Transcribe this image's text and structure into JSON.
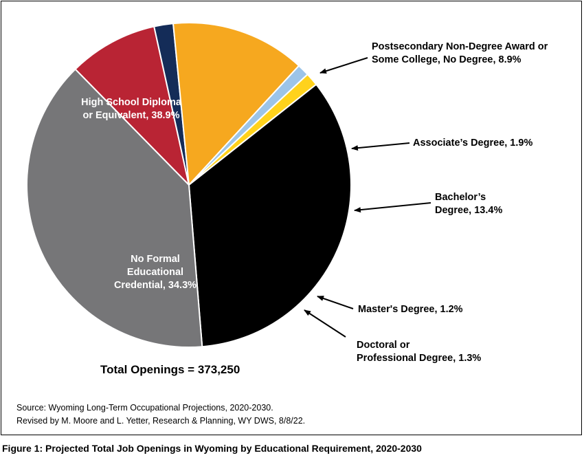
{
  "chart_data": {
    "type": "pie",
    "title": "",
    "total_label": "Total Openings = 373,250",
    "slices": [
      {
        "label": "Postsecondary Non-Degree Award or\nSome College, No Degree, 8.9%",
        "value": 8.9,
        "color": "#b92434",
        "label_pos": "outside"
      },
      {
        "label": "Associate’s Degree, 1.9%",
        "value": 1.9,
        "color": "#142c58",
        "label_pos": "outside"
      },
      {
        "label": "Bachelor’s\nDegree, 13.4%",
        "value": 13.4,
        "color": "#f6a81f",
        "label_pos": "outside"
      },
      {
        "label": "Master's Degree, 1.2%",
        "value": 1.2,
        "color": "#9cc4e8",
        "label_pos": "outside"
      },
      {
        "label": "Doctoral or\nProfessional Degree, 1.3%",
        "value": 1.3,
        "color": "#ffd21c",
        "label_pos": "outside"
      },
      {
        "label": "No Formal\nEducational\nCredential, 34.3%",
        "value": 34.3,
        "color": "#000000",
        "label_pos": "inside"
      },
      {
        "label": "High School Diploma\nor Equivalent, 38.9%",
        "value": 38.9,
        "color": "#767678",
        "label_pos": "inside"
      }
    ]
  },
  "source_lines": [
    "Source: Wyoming Long-Term Occupational Projections, 2020-2030.",
    "Revised by M. Moore and L. Yetter, Research & Planning, WY DWS, 8/8/22."
  ],
  "caption": "Figure 1: Projected Total Job Openings in Wyoming by Educational Requirement, 2020-2030"
}
